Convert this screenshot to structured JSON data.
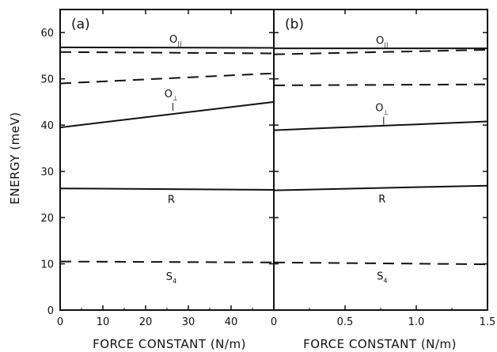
{
  "chart_data": [
    {
      "type": "line",
      "panel_label": "(a)",
      "xlabel": "FORCE CONSTANT (N/m)",
      "ylabel": "ENERGY (meV)",
      "xlim": [
        0,
        50
      ],
      "ylim": [
        0,
        65
      ],
      "xticks": [
        "0",
        "10",
        "20",
        "30",
        "40"
      ],
      "yticks": [
        "0",
        "10",
        "20",
        "30",
        "40",
        "50",
        "60"
      ],
      "series": [
        {
          "style": "solid",
          "x": [
            0,
            50
          ],
          "y": [
            56.8,
            56.7
          ]
        },
        {
          "style": "dashed",
          "x": [
            0,
            50
          ],
          "y": [
            55.8,
            55.5
          ]
        },
        {
          "style": "dashed",
          "x": [
            0,
            50
          ],
          "y": [
            49.0,
            51.2
          ]
        },
        {
          "style": "solid",
          "x": [
            0,
            50
          ],
          "y": [
            39.5,
            45.0
          ]
        },
        {
          "style": "solid",
          "x": [
            0,
            50
          ],
          "y": [
            26.3,
            26.0
          ]
        },
        {
          "style": "dashed",
          "x": [
            0,
            50
          ],
          "y": [
            10.5,
            10.3
          ]
        }
      ],
      "annotations": [
        {
          "text": "O",
          "sub": "||",
          "x": 27,
          "y": 57.8
        },
        {
          "text": "O",
          "sub": "⊥",
          "x": 26,
          "y": 46.0
        },
        {
          "text": "R",
          "x": 26,
          "y": 23.2
        },
        {
          "text": "S",
          "sub": "4",
          "x": 26,
          "y": 6.5
        }
      ]
    },
    {
      "type": "line",
      "panel_label": "(b)",
      "xlabel": "FORCE CONSTANT (N/m)",
      "ylabel": "",
      "xlim": [
        0,
        1.5
      ],
      "ylim": [
        0,
        65
      ],
      "xticks": [
        "0",
        "0.5",
        "1.0",
        "1.5"
      ],
      "yticks": [],
      "series": [
        {
          "style": "solid",
          "x": [
            0,
            1.5
          ],
          "y": [
            56.6,
            56.6
          ]
        },
        {
          "style": "dashed",
          "x": [
            0,
            1.5
          ],
          "y": [
            55.3,
            56.3
          ]
        },
        {
          "style": "dashed",
          "x": [
            0,
            1.5
          ],
          "y": [
            48.6,
            48.8
          ]
        },
        {
          "style": "solid",
          "x": [
            0,
            1.5
          ],
          "y": [
            38.9,
            40.8
          ]
        },
        {
          "style": "solid",
          "x": [
            0,
            1.5
          ],
          "y": [
            25.9,
            26.9
          ]
        },
        {
          "style": "dashed",
          "x": [
            0,
            1.5
          ],
          "y": [
            10.3,
            9.9
          ]
        }
      ],
      "annotations": [
        {
          "text": "O",
          "sub": "||",
          "x": 0.76,
          "y": 57.6
        },
        {
          "text": "O",
          "sub": "⊥",
          "x": 0.76,
          "y": 43.0
        },
        {
          "text": "R",
          "x": 0.76,
          "y": 23.3
        },
        {
          "text": "S",
          "sub": "4",
          "x": 0.76,
          "y": 6.6
        }
      ]
    }
  ]
}
